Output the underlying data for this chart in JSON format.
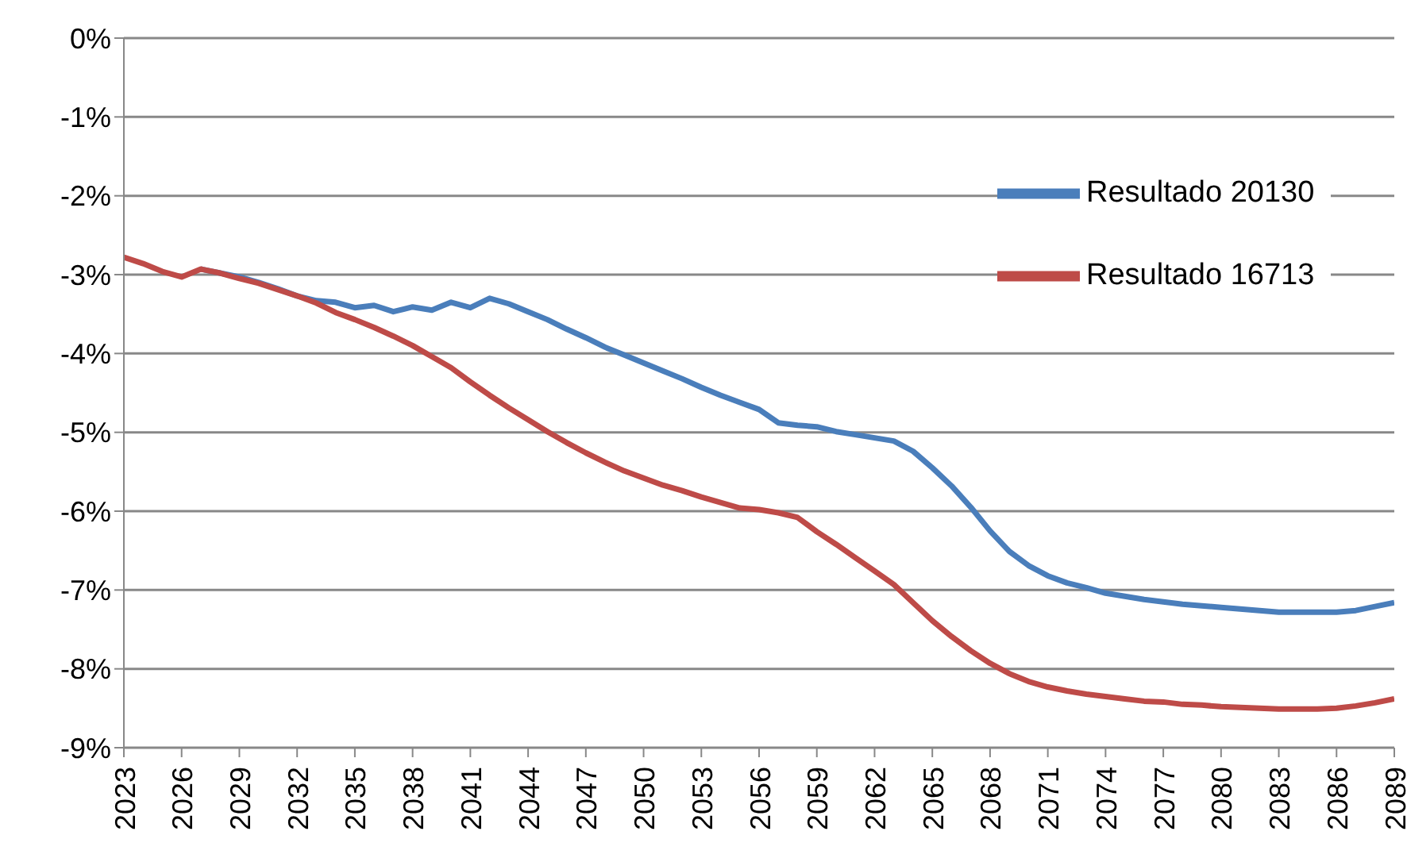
{
  "chart_data": {
    "type": "line",
    "x": [
      2023,
      2024,
      2025,
      2026,
      2027,
      2028,
      2029,
      2030,
      2031,
      2032,
      2033,
      2034,
      2035,
      2036,
      2037,
      2038,
      2039,
      2040,
      2041,
      2042,
      2043,
      2044,
      2045,
      2046,
      2047,
      2048,
      2049,
      2050,
      2051,
      2052,
      2053,
      2054,
      2055,
      2056,
      2057,
      2058,
      2059,
      2060,
      2061,
      2062,
      2063,
      2064,
      2065,
      2066,
      2067,
      2068,
      2069,
      2070,
      2071,
      2072,
      2073,
      2074,
      2075,
      2076,
      2077,
      2078,
      2079,
      2080,
      2081,
      2082,
      2083,
      2084,
      2085,
      2086,
      2087,
      2088,
      2089
    ],
    "series": [
      {
        "name": "Resultado 20130",
        "color": "#4a7ebb",
        "values": [
          null,
          null,
          null,
          null,
          -2.93,
          -2.98,
          -3.03,
          -3.1,
          -3.18,
          -3.27,
          -3.33,
          -3.35,
          -3.42,
          -3.39,
          -3.47,
          -3.41,
          -3.45,
          -3.35,
          -3.42,
          -3.3,
          -3.37,
          -3.47,
          -3.57,
          -3.69,
          -3.8,
          -3.92,
          -4.02,
          -4.12,
          -4.22,
          -4.32,
          -4.43,
          -4.53,
          -4.62,
          -4.71,
          -4.88,
          -4.91,
          -4.93,
          -4.99,
          -5.03,
          -5.07,
          -5.11,
          -5.24,
          -5.45,
          -5.68,
          -5.95,
          -6.25,
          -6.51,
          -6.69,
          -6.82,
          -6.91,
          -6.97,
          -7.04,
          -7.08,
          -7.12,
          -7.15,
          -7.18,
          -7.2,
          -7.22,
          -7.24,
          -7.26,
          -7.28,
          -7.28,
          -7.28,
          -7.28,
          -7.26,
          -7.21,
          -7.16
        ]
      },
      {
        "name": "Resultado 16713",
        "color": "#be4b48",
        "values": [
          -2.78,
          -2.86,
          -2.96,
          -3.03,
          -2.93,
          -2.98,
          -3.05,
          -3.11,
          -3.19,
          -3.27,
          -3.36,
          -3.48,
          -3.57,
          -3.67,
          -3.78,
          -3.9,
          -4.04,
          -4.18,
          -4.36,
          -4.53,
          -4.69,
          -4.84,
          -4.99,
          -5.13,
          -5.26,
          -5.38,
          -5.49,
          -5.58,
          -5.67,
          -5.74,
          -5.82,
          -5.89,
          -5.96,
          -5.98,
          -6.02,
          -6.08,
          -6.26,
          -6.42,
          -6.59,
          -6.76,
          -6.93,
          -7.16,
          -7.39,
          -7.59,
          -7.77,
          -7.93,
          -8.06,
          -8.16,
          -8.23,
          -8.28,
          -8.32,
          -8.35,
          -8.38,
          -8.41,
          -8.42,
          -8.45,
          -8.46,
          -8.48,
          -8.49,
          -8.5,
          -8.51,
          -8.51,
          -8.51,
          -8.5,
          -8.47,
          -8.43,
          -8.38
        ]
      }
    ],
    "xlim": [
      2023,
      2089
    ],
    "xticks": [
      2023,
      2026,
      2029,
      2032,
      2035,
      2038,
      2041,
      2044,
      2047,
      2050,
      2053,
      2056,
      2059,
      2062,
      2065,
      2068,
      2071,
      2074,
      2077,
      2080,
      2083,
      2086,
      2089
    ],
    "ylim": [
      -9,
      0
    ],
    "yticks": [
      {
        "value": 0,
        "label": "0%"
      },
      {
        "value": -1,
        "label": "-1%"
      },
      {
        "value": -2,
        "label": "-2%"
      },
      {
        "value": -3,
        "label": "-3%"
      },
      {
        "value": -4,
        "label": "-4%"
      },
      {
        "value": -5,
        "label": "-5%"
      },
      {
        "value": -6,
        "label": "-6%"
      },
      {
        "value": -7,
        "label": "-7%"
      },
      {
        "value": -8,
        "label": "-8%"
      },
      {
        "value": -9,
        "label": "-9%"
      }
    ],
    "grid": "y",
    "legend": "top right",
    "marker": "none",
    "line_style": "solid"
  }
}
